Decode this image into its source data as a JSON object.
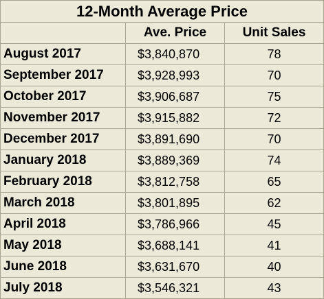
{
  "chart_data": {
    "type": "table",
    "title": "12-Month Average Price",
    "columns": [
      "",
      "Ave. Price",
      "Unit Sales"
    ],
    "rows": [
      {
        "month": "August 2017",
        "price": "$3,840,870",
        "units": "78"
      },
      {
        "month": "September 2017",
        "price": "$3,928,993",
        "units": "70"
      },
      {
        "month": "October 2017",
        "price": "$3,906,687",
        "units": "75"
      },
      {
        "month": "November 2017",
        "price": "$3,915,882",
        "units": "72"
      },
      {
        "month": "December 2017",
        "price": "$3,891,690",
        "units": "70"
      },
      {
        "month": "January 2018",
        "price": "$3,889,369",
        "units": "74"
      },
      {
        "month": "February 2018",
        "price": "$3,812,758",
        "units": "65"
      },
      {
        "month": "March 2018",
        "price": "$3,801,895",
        "units": "62"
      },
      {
        "month": "April 2018",
        "price": "$3,786,966",
        "units": "45"
      },
      {
        "month": "May 2018",
        "price": "$3,688,141",
        "units": "41"
      },
      {
        "month": "June 2018",
        "price": "$3,631,670",
        "units": "40"
      },
      {
        "month": "July 2018",
        "price": "$3,546,321",
        "units": "43"
      }
    ]
  },
  "colors": {
    "background": "#ece9d8",
    "border": "#a9a48f"
  }
}
